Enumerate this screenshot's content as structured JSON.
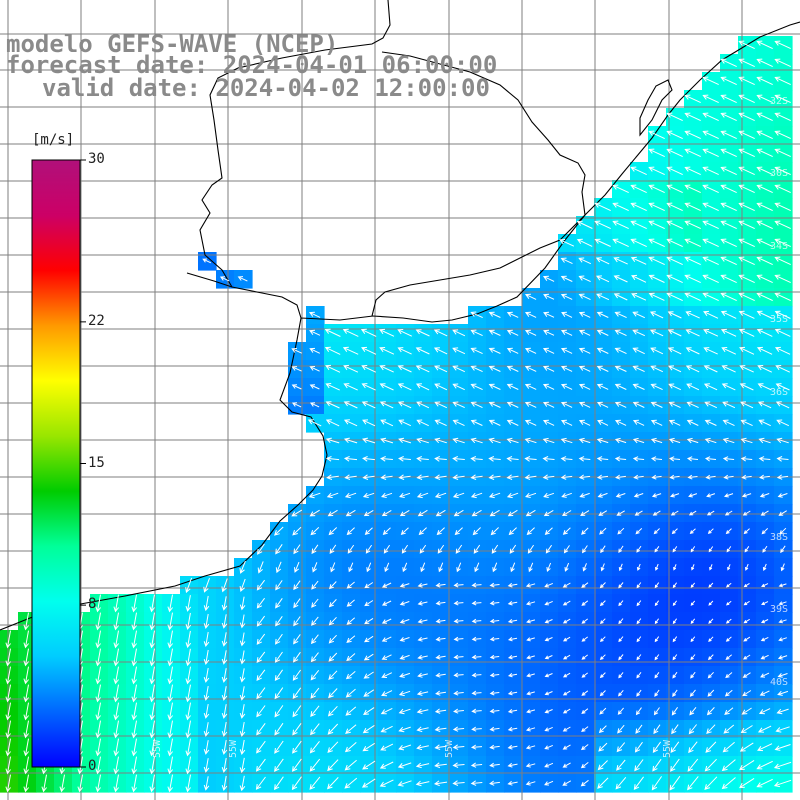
{
  "header": {
    "line1": "modelo GEFS-WAVE (NCEP)",
    "line2": "forecast date: 2024-04-01 06:00:00",
    "line3": "valid date: 2024-04-02 12:00:00"
  },
  "colorbar": {
    "units": "[m/s]",
    "ticks": [
      {
        "label": "30",
        "value": 30
      },
      {
        "label": "22",
        "value": 22
      },
      {
        "label": "15",
        "value": 15
      },
      {
        "label": "8",
        "value": 8
      },
      {
        "label": "0",
        "value": 0
      }
    ],
    "stops": [
      "#0000ff",
      "#0066ff",
      "#00ccff",
      "#00ffee",
      "#00ff99",
      "#00cc00",
      "#99e600",
      "#ffff00",
      "#ff9900",
      "#ff0000",
      "#cc0066",
      "#b0107a"
    ]
  },
  "colors": {
    "land": "#ffffff",
    "coastline": "#000000",
    "grid": "#7f7f7f",
    "arrow": "#ffffff"
  },
  "chart_data": {
    "type": "heatmap",
    "variable": "wind",
    "units": "m/s",
    "longitude_labels": [
      "55W",
      "55W",
      "55W",
      "55W"
    ],
    "latitude_labels": [
      "32S",
      "30S",
      "34S",
      "35S",
      "36S",
      "38S",
      "39S",
      "40S"
    ],
    "field_summary": {
      "calm_center": "near 55W 38S",
      "min_speed": 0,
      "max_speed": 12,
      "typical_offshore": 6
    }
  }
}
